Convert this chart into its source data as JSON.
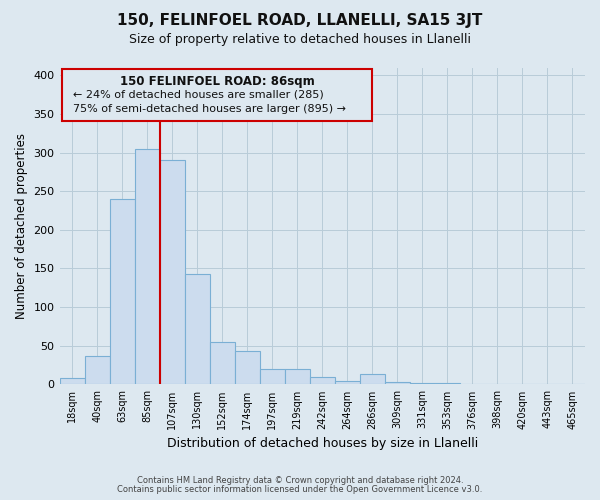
{
  "title": "150, FELINFOEL ROAD, LLANELLI, SA15 3JT",
  "subtitle": "Size of property relative to detached houses in Llanelli",
  "xlabel": "Distribution of detached houses by size in Llanelli",
  "ylabel": "Number of detached properties",
  "bar_labels": [
    "18sqm",
    "40sqm",
    "63sqm",
    "85sqm",
    "107sqm",
    "130sqm",
    "152sqm",
    "174sqm",
    "197sqm",
    "219sqm",
    "242sqm",
    "264sqm",
    "286sqm",
    "309sqm",
    "331sqm",
    "353sqm",
    "376sqm",
    "398sqm",
    "420sqm",
    "443sqm",
    "465sqm"
  ],
  "bar_heights": [
    8,
    37,
    240,
    305,
    290,
    143,
    55,
    43,
    20,
    20,
    10,
    5,
    13,
    3,
    2,
    2,
    1,
    1,
    1,
    1,
    1
  ],
  "bar_color": "#ccdcee",
  "bar_edge_color": "#7aafd4",
  "vline_color": "#cc0000",
  "ylim": [
    0,
    410
  ],
  "yticks": [
    0,
    50,
    100,
    150,
    200,
    250,
    300,
    350,
    400
  ],
  "annotation_title": "150 FELINFOEL ROAD: 86sqm",
  "annotation_line1": "← 24% of detached houses are smaller (285)",
  "annotation_line2": "75% of semi-detached houses are larger (895) →",
  "footer_line1": "Contains HM Land Registry data © Crown copyright and database right 2024.",
  "footer_line2": "Contains public sector information licensed under the Open Government Licence v3.0.",
  "background_color": "#dde8f0",
  "plot_background": "#dde8f0",
  "grid_color": "#b8ccd8"
}
